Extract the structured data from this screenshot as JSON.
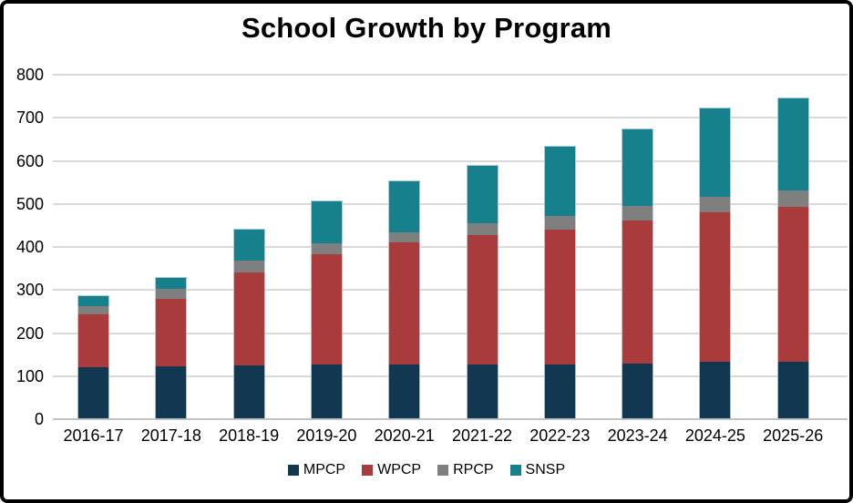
{
  "frame": {
    "background": "#ffffff",
    "border_color": "#000000"
  },
  "chart_data": {
    "type": "bar",
    "stacked": true,
    "title": "School Growth by Program",
    "categories": [
      "2016-17",
      "2017-18",
      "2018-19",
      "2019-20",
      "2020-21",
      "2021-22",
      "2022-23",
      "2023-24",
      "2024-25",
      "2025-26"
    ],
    "series": [
      {
        "name": "MPCP",
        "color": "#123750",
        "values": [
          120,
          122,
          125,
          127,
          127,
          126,
          127,
          129,
          133,
          133
        ]
      },
      {
        "name": "WPCP",
        "color": "#a93b3c",
        "values": [
          123,
          158,
          215,
          256,
          283,
          302,
          313,
          332,
          348,
          360
        ]
      },
      {
        "name": "RPCP",
        "color": "#7f7f7f",
        "values": [
          19,
          22,
          28,
          26,
          23,
          27,
          32,
          34,
          35,
          38
        ]
      },
      {
        "name": "SNSP",
        "color": "#17808d",
        "values": [
          26,
          28,
          75,
          98,
          122,
          135,
          163,
          181,
          208,
          217
        ]
      }
    ],
    "xlabel": "",
    "ylabel": "",
    "ylim": [
      0,
      800
    ],
    "yticks": [
      0,
      100,
      200,
      300,
      400,
      500,
      600,
      700,
      800
    ],
    "grid": true,
    "gridline_color": "#d9d9d9",
    "baseline_color": "#c3c3c3",
    "legend_position": "bottom"
  }
}
